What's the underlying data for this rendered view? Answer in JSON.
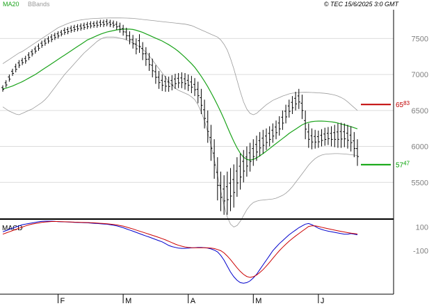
{
  "header": {
    "legend": [
      {
        "label": "MA20",
        "color": "#1aa31a"
      },
      {
        "label": "BBands",
        "color": "#9a9a9a"
      }
    ],
    "copyright": "© TEC 15/6/2025 3:0 GMT"
  },
  "chart_data": [
    {
      "type": "line",
      "panel": "price",
      "y_axis_ticks": [
        "7500",
        "7000",
        "6500",
        "6000",
        "5500"
      ],
      "y_tick_values": [
        7500,
        7000,
        6500,
        6000,
        5500
      ],
      "ylim": [
        5000,
        7900
      ],
      "grid": true,
      "x_axis_labels": [
        "F",
        "M",
        "A",
        "M",
        "J"
      ],
      "x_label_index": [
        17,
        37,
        57,
        77,
        97
      ],
      "n_bars": 110,
      "series": [
        {
          "name": "MA20",
          "color": "#1aa31a",
          "values": [
            6800,
            6810,
            6825,
            6840,
            6860,
            6880,
            6900,
            6925,
            6950,
            6975,
            7000,
            7030,
            7060,
            7090,
            7120,
            7150,
            7180,
            7210,
            7240,
            7270,
            7300,
            7330,
            7360,
            7390,
            7420,
            7450,
            7480,
            7500,
            7520,
            7540,
            7560,
            7575,
            7590,
            7600,
            7610,
            7620,
            7625,
            7630,
            7630,
            7630,
            7625,
            7615,
            7600,
            7585,
            7565,
            7545,
            7525,
            7505,
            7485,
            7465,
            7440,
            7415,
            7385,
            7355,
            7320,
            7280,
            7240,
            7195,
            7150,
            7100,
            7040,
            6975,
            6905,
            6830,
            6750,
            6665,
            6575,
            6480,
            6380,
            6275,
            6170,
            6070,
            5980,
            5905,
            5850,
            5820,
            5810,
            5820,
            5840,
            5870,
            5900,
            5935,
            5970,
            6005,
            6040,
            6075,
            6110,
            6145,
            6180,
            6210,
            6240,
            6270,
            6300,
            6320,
            6335,
            6345,
            6350,
            6352,
            6352,
            6350,
            6347,
            6342,
            6335,
            6325,
            6312,
            6300,
            6288,
            6275,
            6260,
            6245
          ]
        },
        {
          "name": "BBands upper",
          "color": "#9a9a9a",
          "values": [
            7150,
            7180,
            7210,
            7240,
            7270,
            7300,
            7320,
            7350,
            7380,
            7410,
            7440,
            7470,
            7500,
            7530,
            7560,
            7590,
            7620,
            7650,
            7670,
            7690,
            7710,
            7725,
            7740,
            7750,
            7758,
            7765,
            7770,
            7775,
            7778,
            7780,
            7782,
            7784,
            7785,
            7786,
            7786,
            7786,
            7786,
            7785,
            7784,
            7782,
            7780,
            7775,
            7770,
            7765,
            7760,
            7755,
            7750,
            7745,
            7740,
            7735,
            7730,
            7725,
            7720,
            7715,
            7710,
            7705,
            7700,
            7690,
            7680,
            7660,
            7640,
            7620,
            7600,
            7580,
            7560,
            7540,
            7520,
            7480,
            7420,
            7340,
            7220,
            7080,
            6920,
            6760,
            6620,
            6520,
            6460,
            6440,
            6460,
            6500,
            6540,
            6580,
            6610,
            6640,
            6660,
            6680,
            6700,
            6715,
            6730,
            6740,
            6745,
            6750,
            6752,
            6753,
            6752,
            6750,
            6748,
            6745,
            6742,
            6738,
            6732,
            6725,
            6715,
            6700,
            6680,
            6655,
            6620,
            6580,
            6540,
            6500
          ]
        },
        {
          "name": "BBands lower",
          "color": "#9a9a9a",
          "values": [
            6550,
            6520,
            6490,
            6470,
            6450,
            6440,
            6460,
            6480,
            6500,
            6520,
            6550,
            6580,
            6610,
            6650,
            6700,
            6760,
            6820,
            6880,
            6940,
            7000,
            7050,
            7100,
            7150,
            7200,
            7250,
            7300,
            7340,
            7380,
            7420,
            7460,
            7490,
            7510,
            7520,
            7520,
            7520,
            7515,
            7505,
            7495,
            7480,
            7460,
            7440,
            7415,
            7385,
            7350,
            7310,
            7260,
            7200,
            7140,
            7080,
            7020,
            6960,
            6900,
            6850,
            6810,
            6780,
            6760,
            6740,
            6720,
            6690,
            6650,
            6580,
            6480,
            6350,
            6200,
            6020,
            5820,
            5600,
            5380,
            5180,
            5020,
            4920,
            4880,
            4900,
            4960,
            5040,
            5120,
            5180,
            5220,
            5240,
            5250,
            5255,
            5260,
            5265,
            5270,
            5280,
            5300,
            5320,
            5350,
            5390,
            5440,
            5500,
            5560,
            5620,
            5680,
            5740,
            5790,
            5830,
            5860,
            5880,
            5890,
            5895,
            5898,
            5900,
            5900,
            5898,
            5895,
            5890,
            5885,
            5880,
            5875
          ]
        }
      ],
      "price_bars": [
        {
          "high": 6850,
          "low": 6760
        },
        {
          "high": 6920,
          "low": 6820
        },
        {
          "high": 7000,
          "low": 6900
        },
        {
          "high": 7080,
          "low": 6980
        },
        {
          "high": 7150,
          "low": 7030
        },
        {
          "high": 7200,
          "low": 7090
        },
        {
          "high": 7230,
          "low": 7130
        },
        {
          "high": 7260,
          "low": 7150
        },
        {
          "high": 7310,
          "low": 7200
        },
        {
          "high": 7350,
          "low": 7250
        },
        {
          "high": 7390,
          "low": 7290
        },
        {
          "high": 7430,
          "low": 7330
        },
        {
          "high": 7470,
          "low": 7370
        },
        {
          "high": 7500,
          "low": 7400
        },
        {
          "high": 7530,
          "low": 7430
        },
        {
          "high": 7560,
          "low": 7450
        },
        {
          "high": 7580,
          "low": 7480
        },
        {
          "high": 7600,
          "low": 7500
        },
        {
          "high": 7620,
          "low": 7530
        },
        {
          "high": 7650,
          "low": 7550
        },
        {
          "high": 7660,
          "low": 7560
        },
        {
          "high": 7680,
          "low": 7580
        },
        {
          "high": 7690,
          "low": 7590
        },
        {
          "high": 7700,
          "low": 7600
        },
        {
          "high": 7710,
          "low": 7610
        },
        {
          "high": 7720,
          "low": 7620
        },
        {
          "high": 7730,
          "low": 7630
        },
        {
          "high": 7740,
          "low": 7640
        },
        {
          "high": 7740,
          "low": 7650
        },
        {
          "high": 7750,
          "low": 7650
        },
        {
          "high": 7760,
          "low": 7660
        },
        {
          "high": 7760,
          "low": 7660
        },
        {
          "high": 7770,
          "low": 7670
        },
        {
          "high": 7760,
          "low": 7660
        },
        {
          "high": 7750,
          "low": 7650
        },
        {
          "high": 7740,
          "low": 7620
        },
        {
          "high": 7720,
          "low": 7580
        },
        {
          "high": 7690,
          "low": 7540
        },
        {
          "high": 7650,
          "low": 7480
        },
        {
          "high": 7600,
          "low": 7420
        },
        {
          "high": 7550,
          "low": 7360
        },
        {
          "high": 7500,
          "low": 7280
        },
        {
          "high": 7560,
          "low": 7300
        },
        {
          "high": 7450,
          "low": 7200
        },
        {
          "high": 7380,
          "low": 7120
        },
        {
          "high": 7300,
          "low": 7050
        },
        {
          "high": 7220,
          "low": 6960
        },
        {
          "high": 7130,
          "low": 6870
        },
        {
          "high": 7050,
          "low": 6800
        },
        {
          "high": 7000,
          "low": 6770
        },
        {
          "high": 6980,
          "low": 6760
        },
        {
          "high": 6970,
          "low": 6760
        },
        {
          "high": 6990,
          "low": 6780
        },
        {
          "high": 7010,
          "low": 6800
        },
        {
          "high": 7020,
          "low": 6810
        },
        {
          "high": 7030,
          "low": 6810
        },
        {
          "high": 7020,
          "low": 6790
        },
        {
          "high": 7000,
          "low": 6770
        },
        {
          "high": 6980,
          "low": 6740
        },
        {
          "high": 6950,
          "low": 6700
        },
        {
          "high": 6900,
          "low": 6600
        },
        {
          "high": 6800,
          "low": 6450
        },
        {
          "high": 6650,
          "low": 6250
        },
        {
          "high": 6500,
          "low": 6050
        },
        {
          "high": 6300,
          "low": 5800
        },
        {
          "high": 6100,
          "low": 5550
        },
        {
          "high": 5850,
          "low": 5250
        },
        {
          "high": 5650,
          "low": 5100
        },
        {
          "high": 5600,
          "low": 5050
        },
        {
          "high": 5650,
          "low": 5050
        },
        {
          "high": 5700,
          "low": 5100
        },
        {
          "high": 5750,
          "low": 5150
        },
        {
          "high": 5850,
          "low": 5300
        },
        {
          "high": 5900,
          "low": 5400
        },
        {
          "high": 5950,
          "low": 5500
        },
        {
          "high": 6000,
          "low": 5580
        },
        {
          "high": 6050,
          "low": 5650
        },
        {
          "high": 6100,
          "low": 5730
        },
        {
          "high": 6150,
          "low": 5800
        },
        {
          "high": 6200,
          "low": 5860
        },
        {
          "high": 6230,
          "low": 5900
        },
        {
          "high": 6250,
          "low": 5950
        },
        {
          "high": 6280,
          "low": 6000
        },
        {
          "high": 6320,
          "low": 6050
        },
        {
          "high": 6360,
          "low": 6100
        },
        {
          "high": 6420,
          "low": 6150
        },
        {
          "high": 6500,
          "low": 6230
        },
        {
          "high": 6580,
          "low": 6320
        },
        {
          "high": 6650,
          "low": 6400
        },
        {
          "high": 6700,
          "low": 6450
        },
        {
          "high": 6760,
          "low": 6500
        },
        {
          "high": 6800,
          "low": 6520
        },
        {
          "high": 6720,
          "low": 6380
        },
        {
          "high": 6500,
          "low": 6100
        },
        {
          "high": 6320,
          "low": 5980
        },
        {
          "high": 6250,
          "low": 5960
        },
        {
          "high": 6230,
          "low": 5970
        },
        {
          "high": 6220,
          "low": 5980
        },
        {
          "high": 6240,
          "low": 6000
        },
        {
          "high": 6260,
          "low": 6010
        },
        {
          "high": 6270,
          "low": 6020
        },
        {
          "high": 6280,
          "low": 6000
        },
        {
          "high": 6300,
          "low": 5990
        },
        {
          "high": 6320,
          "low": 5980
        },
        {
          "high": 6330,
          "low": 5980
        },
        {
          "high": 6320,
          "low": 5990
        },
        {
          "high": 6300,
          "low": 5970
        },
        {
          "high": 6280,
          "low": 5930
        },
        {
          "high": 6200,
          "low": 5850
        },
        {
          "high": 6100,
          "low": 5730
        }
      ],
      "levels": [
        {
          "value": 6583,
          "label_main": "65",
          "label_sup": "83",
          "color": "#c00000"
        },
        {
          "value": 5747,
          "label_main": "57",
          "label_sup": "47",
          "color": "#00a000"
        }
      ]
    },
    {
      "type": "line",
      "panel": "macd",
      "title": "MACD",
      "y_axis_ticks": [
        "100",
        "-100"
      ],
      "y_tick_values": [
        100,
        -100
      ],
      "ylim": [
        -450,
        150
      ],
      "series": [
        {
          "name": "MACD",
          "color": "#0000cc",
          "values": [
            60,
            70,
            80,
            90,
            100,
            110,
            120,
            125,
            130,
            135,
            140,
            145,
            148,
            150,
            150,
            150,
            148,
            146,
            145,
            144,
            143,
            142,
            140,
            139,
            138,
            137,
            136,
            134,
            132,
            130,
            128,
            126,
            124,
            120,
            115,
            110,
            103,
            95,
            85,
            75,
            65,
            55,
            45,
            35,
            25,
            15,
            5,
            -5,
            -15,
            -25,
            -40,
            -55,
            -65,
            -72,
            -78,
            -80,
            -80,
            -78,
            -76,
            -74,
            -72,
            -72,
            -74,
            -78,
            -85,
            -95,
            -110,
            -140,
            -180,
            -230,
            -280,
            -320,
            -350,
            -370,
            -375,
            -370,
            -355,
            -330,
            -300,
            -260,
            -220,
            -180,
            -140,
            -100,
            -70,
            -40,
            -15,
            10,
            35,
            55,
            75,
            95,
            110,
            125,
            130,
            120,
            105,
            90,
            80,
            72,
            65,
            60,
            55,
            50,
            45,
            40,
            40,
            45,
            40,
            35
          ]
        },
        {
          "name": "Signal",
          "color": "#cc0000",
          "values": [
            40,
            50,
            60,
            70,
            80,
            90,
            100,
            110,
            118,
            125,
            130,
            135,
            140,
            143,
            145,
            147,
            147,
            147,
            146,
            145,
            144,
            143,
            142,
            141,
            140,
            139,
            138,
            137,
            136,
            134,
            132,
            130,
            128,
            125,
            122,
            118,
            113,
            108,
            100,
            92,
            84,
            75,
            66,
            57,
            48,
            39,
            30,
            21,
            12,
            2,
            -8,
            -20,
            -32,
            -44,
            -54,
            -62,
            -68,
            -72,
            -74,
            -75,
            -75,
            -75,
            -75,
            -76,
            -78,
            -82,
            -90,
            -100,
            -118,
            -145,
            -175,
            -210,
            -245,
            -275,
            -300,
            -318,
            -325,
            -320,
            -305,
            -285,
            -260,
            -230,
            -198,
            -165,
            -132,
            -100,
            -72,
            -45,
            -20,
            3,
            25,
            45,
            65,
            85,
            105,
            110,
            110,
            105,
            98,
            92,
            86,
            80,
            74,
            68,
            63,
            58,
            53,
            48,
            45,
            42
          ]
        }
      ]
    }
  ]
}
